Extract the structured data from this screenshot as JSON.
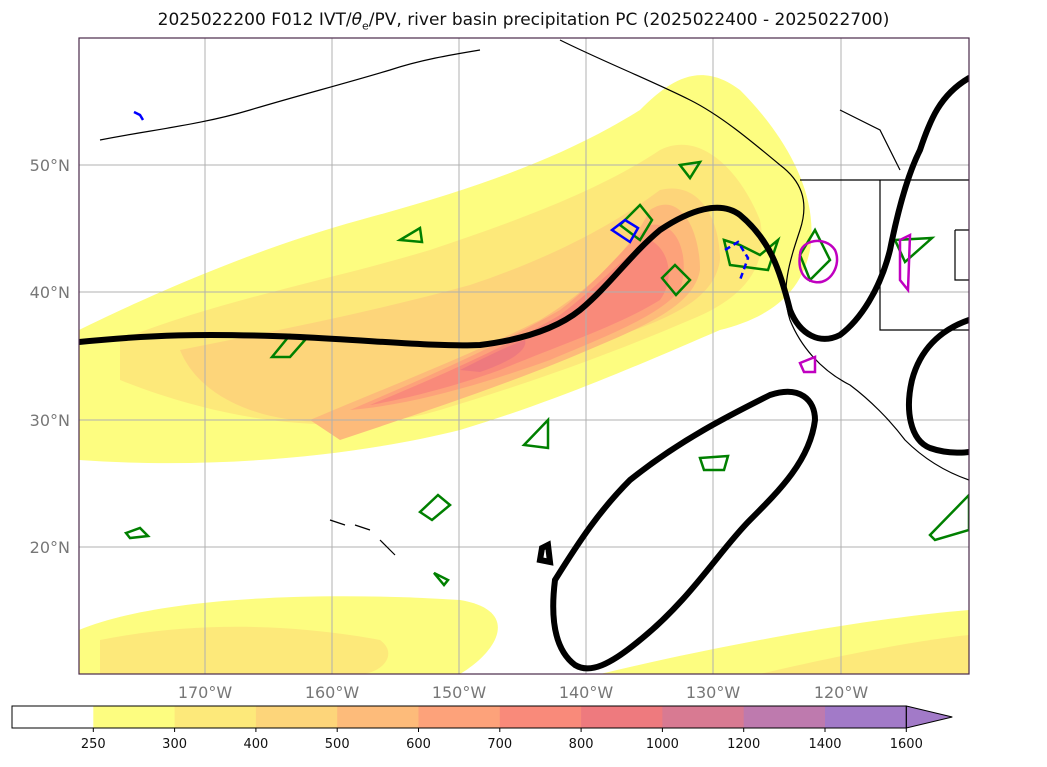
{
  "title": {
    "prefix": "2025022200 F012 IVT/",
    "theta": "θ",
    "theta_sub": "e",
    "suffix": "/PV, river basin precipitation PC (2025022400 - 2025022700)"
  },
  "latitude_labels": [
    "50°N",
    "40°N",
    "30°N",
    "20°N"
  ],
  "longitude_labels": [
    "170°W",
    "160°W",
    "150°W",
    "140°W",
    "130°W",
    "120°W"
  ],
  "colorbar": {
    "levels": [
      "250",
      "300",
      "400",
      "500",
      "600",
      "700",
      "800",
      "1000",
      "1200",
      "1400",
      "1600"
    ],
    "colors": [
      "#ffffff",
      "#fdfd80",
      "#fde97a",
      "#fdd57a",
      "#fdbb7a",
      "#fda27a",
      "#f98a7a",
      "#ee7a7e",
      "#d87a92",
      "#be7aae",
      "#a27ac8"
    ],
    "extend": "max"
  },
  "colors": {
    "ivt_contour": "#000000",
    "theta_green": "#008000",
    "pv_blue": "#0000ff",
    "pv_magenta": "#c000c0",
    "coastline": "#000000",
    "grid": "#b0b0b0"
  }
}
